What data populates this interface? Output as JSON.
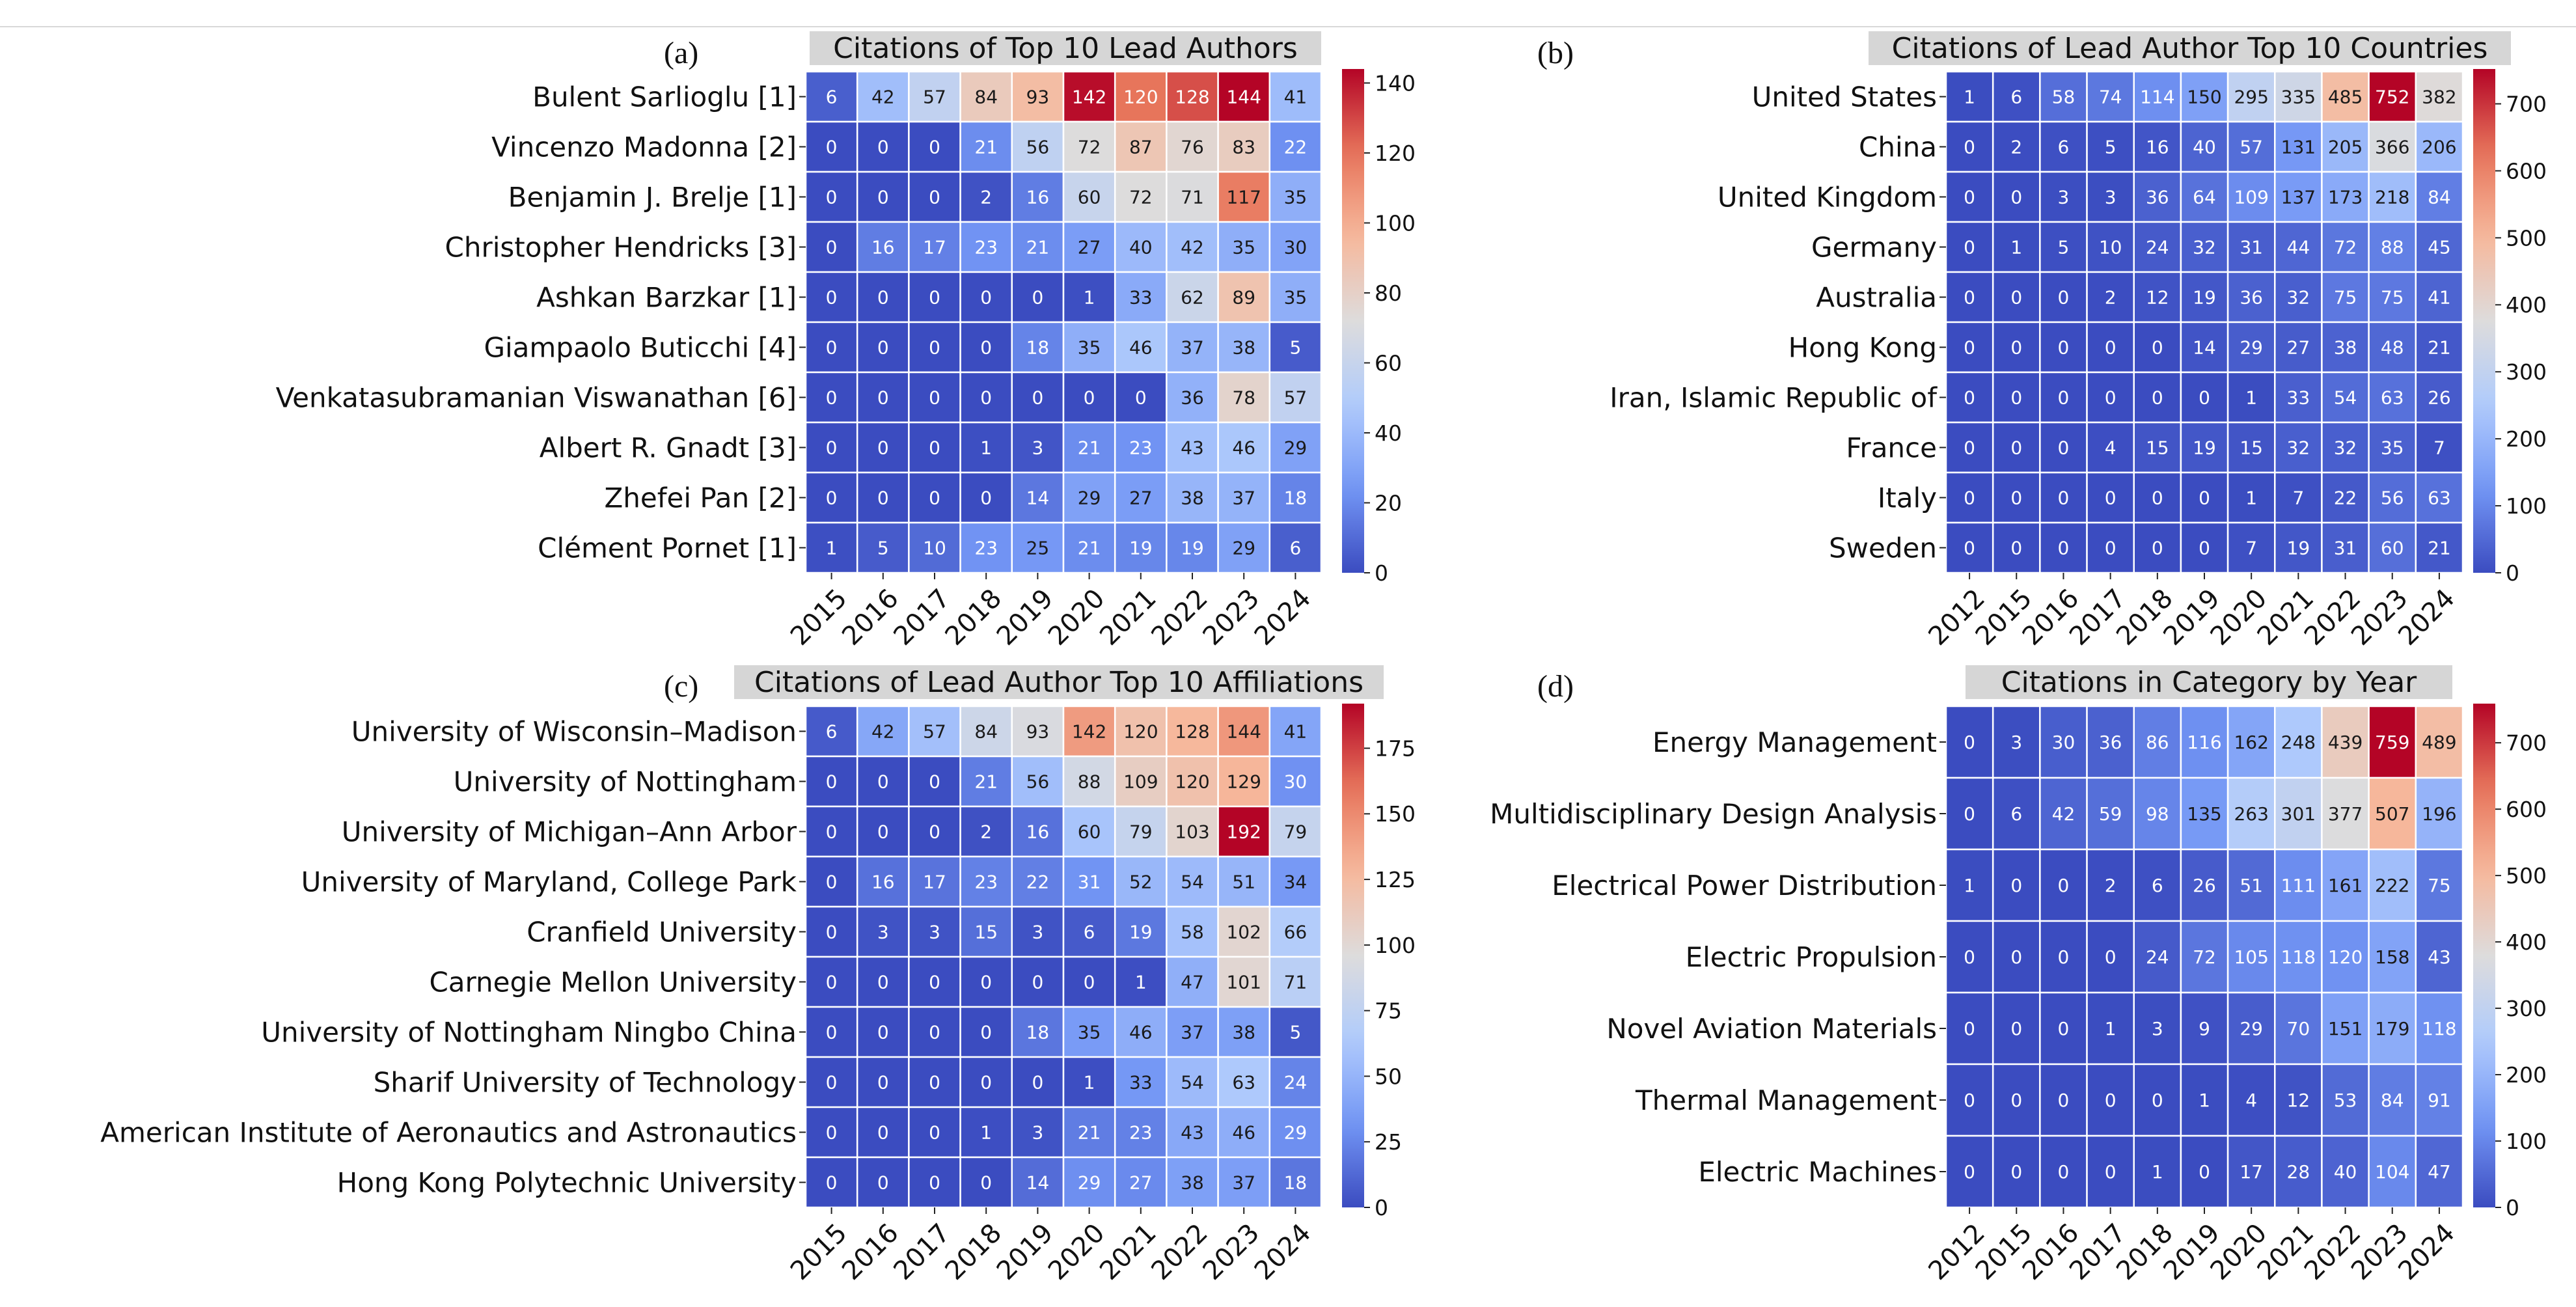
{
  "colormap": {
    "stops": [
      "#3b4cc0",
      "#7396f5",
      "#b0cbfc",
      "#dddcdc",
      "#f6b89c",
      "#e7755b",
      "#b40426"
    ],
    "cell_border": "#ffffff",
    "title_bg": "#d6d6d6",
    "text_dark": "#1a1a1a",
    "text_light": "#ffffff"
  },
  "chart_data": [
    {
      "id": "a",
      "type": "heatmap",
      "panel_label": "(a)",
      "title": "Citations of Top 10 Lead Authors",
      "rows": [
        "Bulent Sarlioglu [1]",
        "Vincenzo Madonna [2]",
        "Benjamin J. Brelje [1]",
        "Christopher Hendricks [3]",
        "Ashkan Barzkar [1]",
        "Giampaolo Buticchi [4]",
        "Venkatasubramanian Viswanathan [6]",
        "Albert R. Gnadt [3]",
        "Zhefei Pan [2]",
        "Clément Pornet [1]"
      ],
      "columns": [
        "2015",
        "2016",
        "2017",
        "2018",
        "2019",
        "2020",
        "2021",
        "2022",
        "2023",
        "2024"
      ],
      "values": [
        [
          6,
          42,
          57,
          84,
          93,
          142,
          120,
          128,
          144,
          41
        ],
        [
          0,
          0,
          0,
          21,
          56,
          72,
          87,
          76,
          83,
          22
        ],
        [
          0,
          0,
          0,
          2,
          16,
          60,
          72,
          71,
          117,
          35
        ],
        [
          0,
          16,
          17,
          23,
          21,
          27,
          40,
          42,
          35,
          30
        ],
        [
          0,
          0,
          0,
          0,
          0,
          1,
          33,
          62,
          89,
          35
        ],
        [
          0,
          0,
          0,
          0,
          18,
          35,
          46,
          37,
          38,
          5
        ],
        [
          0,
          0,
          0,
          0,
          0,
          0,
          0,
          36,
          78,
          57
        ],
        [
          0,
          0,
          0,
          1,
          3,
          21,
          23,
          43,
          46,
          29
        ],
        [
          0,
          0,
          0,
          0,
          14,
          29,
          27,
          38,
          37,
          18
        ],
        [
          1,
          5,
          10,
          23,
          25,
          21,
          19,
          19,
          29,
          6
        ]
      ],
      "vmin": 0,
      "vmax": 144,
      "colorbar_ticks": [
        0,
        20,
        40,
        60,
        80,
        100,
        120,
        140
      ]
    },
    {
      "id": "b",
      "type": "heatmap",
      "panel_label": "(b)",
      "title": "Citations of Lead Author Top 10 Countries",
      "rows": [
        "United States",
        "China",
        "United Kingdom",
        "Germany",
        "Australia",
        "Hong Kong",
        "Iran, Islamic Republic of",
        "France",
        "Italy",
        "Sweden"
      ],
      "columns": [
        "2012",
        "2015",
        "2016",
        "2017",
        "2018",
        "2019",
        "2020",
        "2021",
        "2022",
        "2023",
        "2024"
      ],
      "values": [
        [
          1,
          6,
          58,
          74,
          114,
          150,
          295,
          335,
          485,
          752,
          382
        ],
        [
          0,
          2,
          6,
          5,
          16,
          40,
          57,
          131,
          205,
          366,
          206
        ],
        [
          0,
          0,
          3,
          3,
          36,
          64,
          109,
          137,
          173,
          218,
          84
        ],
        [
          0,
          1,
          5,
          10,
          24,
          32,
          31,
          44,
          72,
          88,
          45
        ],
        [
          0,
          0,
          0,
          2,
          12,
          19,
          36,
          32,
          75,
          75,
          41
        ],
        [
          0,
          0,
          0,
          0,
          0,
          14,
          29,
          27,
          38,
          48,
          21
        ],
        [
          0,
          0,
          0,
          0,
          0,
          0,
          1,
          33,
          54,
          63,
          26
        ],
        [
          0,
          0,
          0,
          4,
          15,
          19,
          15,
          32,
          32,
          35,
          7
        ],
        [
          0,
          0,
          0,
          0,
          0,
          0,
          1,
          7,
          22,
          56,
          63
        ],
        [
          0,
          0,
          0,
          0,
          0,
          0,
          7,
          19,
          31,
          60,
          21
        ]
      ],
      "vmin": 0,
      "vmax": 752,
      "colorbar_ticks": [
        0,
        100,
        200,
        300,
        400,
        500,
        600,
        700
      ]
    },
    {
      "id": "c",
      "type": "heatmap",
      "panel_label": "(c)",
      "title": "Citations of Lead Author Top 10 Affiliations",
      "rows": [
        "University of Wisconsin–Madison",
        "University of Nottingham",
        "University of Michigan–Ann Arbor",
        "University of Maryland, College Park",
        "Cranfield University",
        "Carnegie Mellon University",
        "University of Nottingham Ningbo China",
        "Sharif University of Technology",
        "American Institute of Aeronautics and Astronautics",
        "Hong Kong Polytechnic University"
      ],
      "columns": [
        "2015",
        "2016",
        "2017",
        "2018",
        "2019",
        "2020",
        "2021",
        "2022",
        "2023",
        "2024"
      ],
      "values": [
        [
          6,
          42,
          57,
          84,
          93,
          142,
          120,
          128,
          144,
          41
        ],
        [
          0,
          0,
          0,
          21,
          56,
          88,
          109,
          120,
          129,
          30
        ],
        [
          0,
          0,
          0,
          2,
          16,
          60,
          79,
          103,
          192,
          79
        ],
        [
          0,
          16,
          17,
          23,
          22,
          31,
          52,
          54,
          51,
          34
        ],
        [
          0,
          3,
          3,
          15,
          3,
          6,
          19,
          58,
          102,
          66
        ],
        [
          0,
          0,
          0,
          0,
          0,
          0,
          1,
          47,
          101,
          71
        ],
        [
          0,
          0,
          0,
          0,
          18,
          35,
          46,
          37,
          38,
          5
        ],
        [
          0,
          0,
          0,
          0,
          0,
          1,
          33,
          54,
          63,
          24
        ],
        [
          0,
          0,
          0,
          1,
          3,
          21,
          23,
          43,
          46,
          29
        ],
        [
          0,
          0,
          0,
          0,
          14,
          29,
          27,
          38,
          37,
          18
        ]
      ],
      "vmin": 0,
      "vmax": 192,
      "colorbar_ticks": [
        0,
        25,
        50,
        75,
        100,
        125,
        150,
        175
      ]
    },
    {
      "id": "d",
      "type": "heatmap",
      "panel_label": "(d)",
      "title": "Citations in Category by Year",
      "rows": [
        "Energy Management",
        "Multidisciplinary Design Analysis",
        "Electrical Power Distribution",
        "Electric Propulsion",
        "Novel Aviation Materials",
        "Thermal Management",
        "Electric Machines"
      ],
      "columns": [
        "2012",
        "2015",
        "2016",
        "2017",
        "2018",
        "2019",
        "2020",
        "2021",
        "2022",
        "2023",
        "2024"
      ],
      "values": [
        [
          0,
          3,
          30,
          36,
          86,
          116,
          162,
          248,
          439,
          759,
          489
        ],
        [
          0,
          6,
          42,
          59,
          98,
          135,
          263,
          301,
          377,
          507,
          196
        ],
        [
          1,
          0,
          0,
          2,
          6,
          26,
          51,
          111,
          161,
          222,
          75
        ],
        [
          0,
          0,
          0,
          0,
          24,
          72,
          105,
          118,
          120,
          158,
          43
        ],
        [
          0,
          0,
          0,
          1,
          3,
          9,
          29,
          70,
          151,
          179,
          118
        ],
        [
          0,
          0,
          0,
          0,
          0,
          1,
          4,
          12,
          53,
          84,
          91
        ],
        [
          0,
          0,
          0,
          0,
          1,
          0,
          17,
          28,
          40,
          104,
          47
        ]
      ],
      "vmin": 0,
      "vmax": 759,
      "colorbar_ticks": [
        0,
        100,
        200,
        300,
        400,
        500,
        600,
        700
      ]
    }
  ]
}
